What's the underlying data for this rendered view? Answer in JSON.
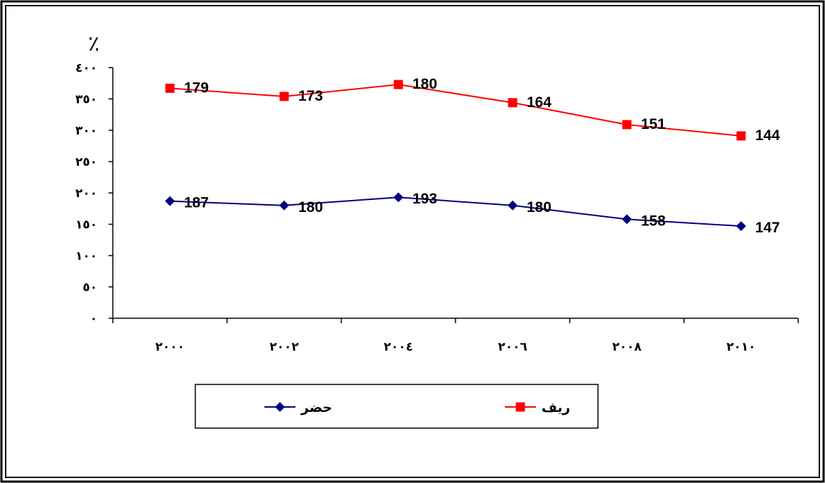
{
  "chart_data": {
    "type": "line",
    "title": "",
    "xlabel": "",
    "ylabel": "٪",
    "categories": [
      "٢٠٠٠",
      "٢٠٠٢",
      "٢٠٠٤",
      "٢٠٠٦",
      "٢٠٠٨",
      "٢٠١٠"
    ],
    "y_ticks": [
      "٠",
      "٥٠",
      "١٠٠",
      "١٥٠",
      "٢٠٠",
      "٢٥٠",
      "٣٠٠",
      "٣٥٠",
      "٤٠٠"
    ],
    "ylim": [
      0,
      400
    ],
    "grid": false,
    "legend_position": "bottom",
    "series": [
      {
        "name": "ريف",
        "color": "#FF0000",
        "marker": "square",
        "plotted_values": [
          367,
          354,
          373,
          344,
          309,
          291
        ],
        "labels": [
          "179",
          "173",
          "180",
          "164",
          "151",
          "144"
        ]
      },
      {
        "name": "حضر",
        "color": "#000080",
        "marker": "diamond",
        "plotted_values": [
          187,
          180,
          193,
          180,
          158,
          147
        ],
        "labels": [
          "187",
          "180",
          "193",
          "180",
          "158",
          "147"
        ]
      }
    ]
  }
}
